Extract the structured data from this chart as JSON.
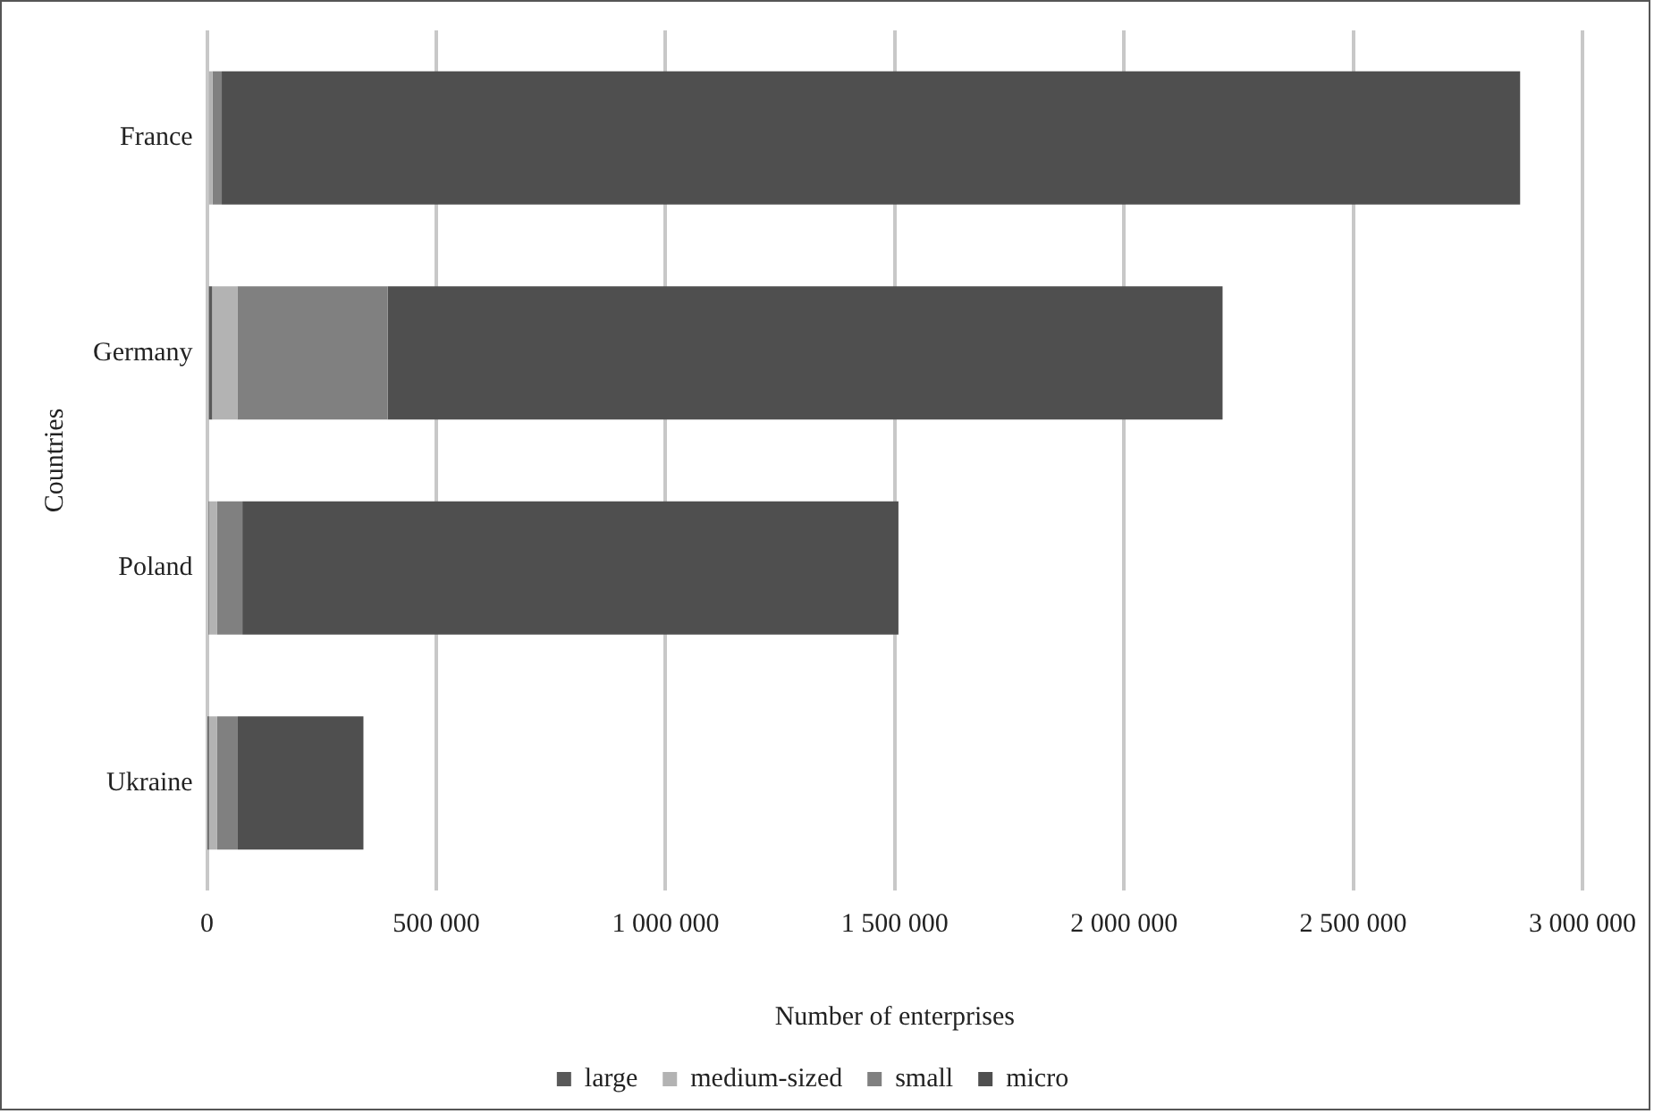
{
  "chart_data": {
    "type": "bar",
    "orientation": "horizontal",
    "stacked": true,
    "xlabel": "Number of enterprises",
    "ylabel": "Countries",
    "categories": [
      "France",
      "Germany",
      "Poland",
      "Ukraine"
    ],
    "series": [
      {
        "name": "large",
        "color": "#595959",
        "values": [
          null,
          11000,
          3000,
          1000
        ]
      },
      {
        "name": "medium-sized",
        "color": "#b3b3b3",
        "values": [
          12000,
          55000,
          19000,
          21000
        ]
      },
      {
        "name": "small",
        "color": "#808080",
        "values": [
          20000,
          328000,
          55000,
          45000
        ]
      },
      {
        "name": "micro",
        "color": "#4f4f4f",
        "values": [
          2832000,
          1821000,
          1431000,
          274000
        ]
      }
    ],
    "xlim": [
      0,
      3000000
    ],
    "xticks": [
      0,
      {
        "value": 500000,
        "label": "500 000"
      },
      {
        "value": 1000000,
        "label": "1 000 000"
      },
      {
        "value": 1500000,
        "label": "1 500 000"
      },
      {
        "value": 2000000,
        "label": "2 000 000"
      },
      {
        "value": 2500000,
        "label": "2 500 000"
      },
      {
        "value": 3000000,
        "label": "3 000 000"
      }
    ],
    "grid": "x",
    "legend": "bottom"
  }
}
